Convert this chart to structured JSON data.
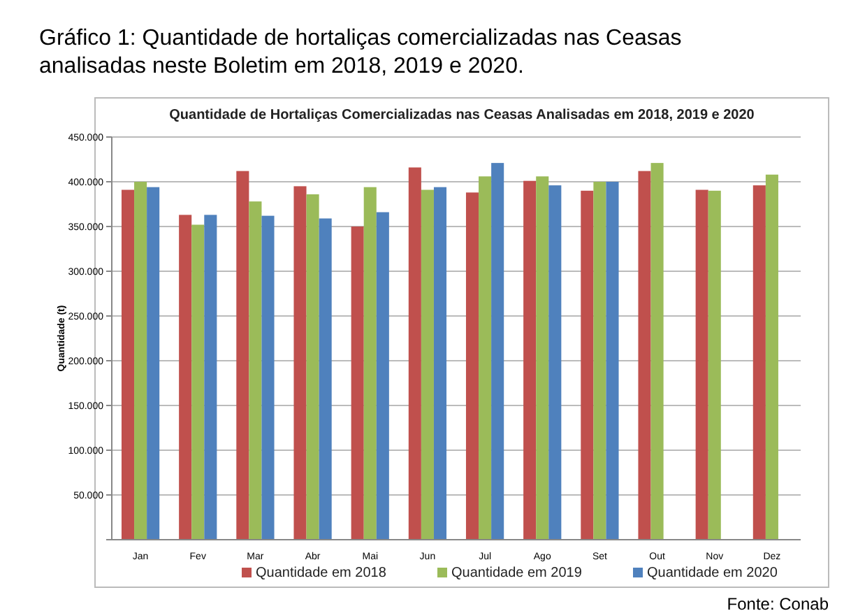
{
  "chart_data": {
    "type": "bar",
    "title": "Gráfico 1: Quantidade de hortaliças comercializadas nas Ceasas analisadas neste Boletim em 2018, 2019 e 2020.",
    "subtitle": "Quantidade de Hortaliças Comercializadas nas Ceasas Analisadas em 2018, 2019 e 2020",
    "ylabel": "Quantidade (t)",
    "annotations": [
      "Fonte: Conab"
    ],
    "categories": [
      "Jan",
      "Fev",
      "Mar",
      "Abr",
      "Mai",
      "Jun",
      "Jul",
      "Ago",
      "Set",
      "Out",
      "Nov",
      "Dez"
    ],
    "series": [
      {
        "name": "Quantidade em 2018",
        "color": "#c0504d",
        "values": [
          391000,
          363000,
          412000,
          395000,
          350000,
          416000,
          388000,
          401000,
          390000,
          412000,
          391000,
          396000
        ]
      },
      {
        "name": "Quantidade em 2019",
        "color": "#9bbb59",
        "values": [
          400000,
          352000,
          378000,
          386000,
          394000,
          391000,
          406000,
          406000,
          400000,
          421000,
          390000,
          408000
        ]
      },
      {
        "name": "Quantidade em 2020",
        "color": "#4f81bd",
        "values": [
          394000,
          363000,
          362000,
          359000,
          366000,
          394000,
          421000,
          396000,
          400000,
          null,
          null,
          null
        ]
      }
    ],
    "ylim": [
      0,
      450000
    ],
    "yticks": [
      {
        "value": 0,
        "label": null
      },
      {
        "value": 50000,
        "label": "50.000"
      },
      {
        "value": 100000,
        "label": "100.000"
      },
      {
        "value": 150000,
        "label": "150.000"
      },
      {
        "value": 200000,
        "label": "200.000"
      },
      {
        "value": 250000,
        "label": "250.000"
      },
      {
        "value": 300000,
        "label": "300.000"
      },
      {
        "value": 350000,
        "label": "350.000"
      },
      {
        "value": 400000,
        "label": "400.000"
      },
      {
        "value": 450000,
        "label": "450.000"
      }
    ],
    "grid": "y",
    "legend": "bottom"
  }
}
